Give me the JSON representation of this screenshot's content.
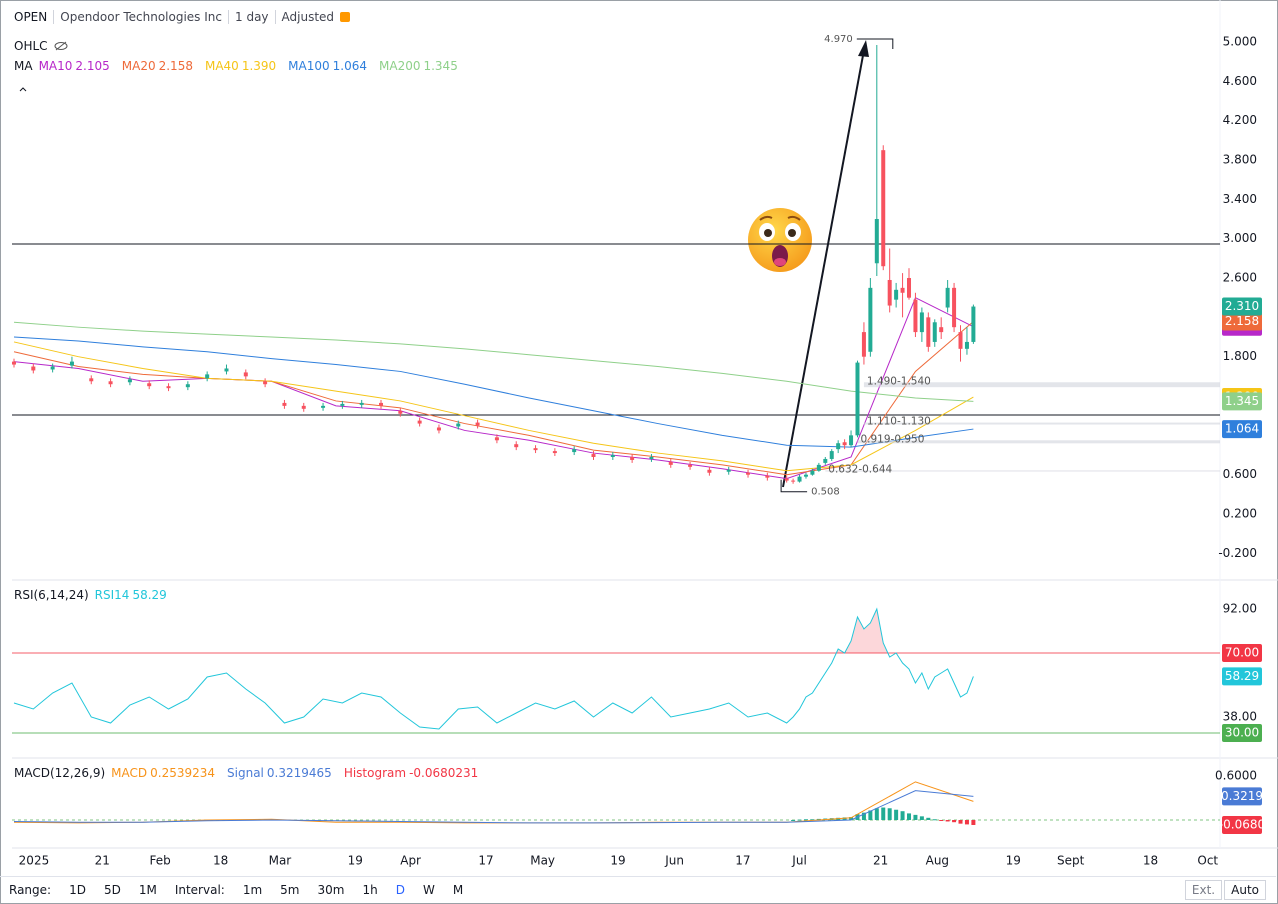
{
  "header": {
    "symbol": "OPEN",
    "name": "Opendoor Technologies Inc",
    "interval": "1 day",
    "adjustment": "Adjusted"
  },
  "chart_data": [
    {
      "type": "candlestick",
      "legend_title": "OHLC",
      "ma_title": "MA",
      "xlim": [
        -0.31,
        187.3
      ],
      "xticks": [
        {
          "value": 3.1,
          "label": "2025"
        },
        {
          "value": 13.7,
          "label": "21"
        },
        {
          "value": 22.7,
          "label": "Feb"
        },
        {
          "value": 32.1,
          "label": "18"
        },
        {
          "value": 41.3,
          "label": "Mar"
        },
        {
          "value": 53,
          "label": "19"
        },
        {
          "value": 61.6,
          "label": "Apr"
        },
        {
          "value": 73.3,
          "label": "17"
        },
        {
          "value": 82.1,
          "label": "May"
        },
        {
          "value": 93.8,
          "label": "19"
        },
        {
          "value": 102.6,
          "label": "Jun"
        },
        {
          "value": 113.2,
          "label": "17"
        },
        {
          "value": 122,
          "label": "Jul"
        },
        {
          "value": 134.6,
          "label": "21"
        },
        {
          "value": 143.4,
          "label": "Aug"
        },
        {
          "value": 155.2,
          "label": "19"
        },
        {
          "value": 164.1,
          "label": "Sept"
        },
        {
          "value": 176.5,
          "label": "18"
        },
        {
          "value": 185.4,
          "label": "Oct"
        }
      ],
      "ylim": [
        -0.3,
        5.4
      ],
      "yticks": [
        {
          "value": 5,
          "label": "5.000"
        },
        {
          "value": 4.6,
          "label": "4.600"
        },
        {
          "value": 4.2,
          "label": "4.200"
        },
        {
          "value": 3.8,
          "label": "3.800"
        },
        {
          "value": 3.4,
          "label": "3.400"
        },
        {
          "value": 3,
          "label": "3.000"
        },
        {
          "value": 2.6,
          "label": "2.600"
        },
        {
          "value": 1.8,
          "label": "1.800"
        },
        {
          "value": 0.6,
          "label": "0.600"
        },
        {
          "value": 0.2,
          "label": "0.200"
        },
        {
          "value": -0.2,
          "label": "-0.200"
        }
      ],
      "x": [
        0,
        3,
        6,
        9,
        12,
        15,
        18,
        21,
        24,
        27,
        30,
        33,
        36,
        39,
        42,
        45,
        48,
        51,
        54,
        57,
        60,
        63,
        66,
        69,
        72,
        75,
        78,
        81,
        84,
        87,
        90,
        93,
        96,
        99,
        102,
        105,
        108,
        111,
        114,
        117,
        120,
        121,
        122,
        123,
        124,
        125,
        126,
        127,
        128,
        129,
        130,
        131,
        132,
        133,
        134,
        135,
        136,
        137,
        138,
        139,
        140,
        141,
        142,
        143,
        144,
        145,
        146,
        147,
        148,
        149
      ],
      "open": [
        1.75,
        1.7,
        1.67,
        1.71,
        1.58,
        1.55,
        1.54,
        1.53,
        1.5,
        1.49,
        1.58,
        1.65,
        1.64,
        1.55,
        1.33,
        1.3,
        1.28,
        1.3,
        1.31,
        1.33,
        1.25,
        1.15,
        1.08,
        1.09,
        1.13,
        0.98,
        0.91,
        0.87,
        0.84,
        0.83,
        0.81,
        0.78,
        0.78,
        0.76,
        0.73,
        0.7,
        0.65,
        0.63,
        0.62,
        0.59,
        0.56,
        0.54,
        0.53,
        0.58,
        0.6,
        0.64,
        0.72,
        0.76,
        0.86,
        0.93,
        0.9,
        1.0,
        2.05,
        1.85,
        2.75,
        3.9,
        2.58,
        2.38,
        2.5,
        2.6,
        2.38,
        2.05,
        2.2,
        1.95,
        2.1,
        2.3,
        2.5,
        2.05,
        1.88,
        1.95
      ],
      "high": [
        1.78,
        1.73,
        1.73,
        1.8,
        1.61,
        1.58,
        1.6,
        1.56,
        1.53,
        1.55,
        1.65,
        1.72,
        1.67,
        1.58,
        1.36,
        1.33,
        1.33,
        1.35,
        1.36,
        1.36,
        1.28,
        1.18,
        1.11,
        1.15,
        1.16,
        1.01,
        0.94,
        0.9,
        0.87,
        0.89,
        0.84,
        0.83,
        0.81,
        0.81,
        0.76,
        0.73,
        0.68,
        0.68,
        0.65,
        0.62,
        0.59,
        0.56,
        0.6,
        0.62,
        0.66,
        0.72,
        0.78,
        0.86,
        0.95,
        0.96,
        1.05,
        1.76,
        2.15,
        2.6,
        4.97,
        3.95,
        2.9,
        2.55,
        2.65,
        2.7,
        2.45,
        2.3,
        2.25,
        2.18,
        2.2,
        2.58,
        2.55,
        2.12,
        2.1,
        2.33
      ],
      "low": [
        1.69,
        1.63,
        1.64,
        1.68,
        1.52,
        1.49,
        1.51,
        1.47,
        1.45,
        1.46,
        1.55,
        1.62,
        1.57,
        1.49,
        1.27,
        1.24,
        1.25,
        1.27,
        1.28,
        1.27,
        1.19,
        1.09,
        1.02,
        1.06,
        1.07,
        0.92,
        0.85,
        0.82,
        0.79,
        0.8,
        0.75,
        0.75,
        0.72,
        0.73,
        0.67,
        0.65,
        0.59,
        0.6,
        0.57,
        0.54,
        0.52,
        0.508,
        0.52,
        0.56,
        0.59,
        0.63,
        0.7,
        0.74,
        0.82,
        0.86,
        0.88,
        0.98,
        1.72,
        1.8,
        2.62,
        2.68,
        2.25,
        2.3,
        2.2,
        2.38,
        2.0,
        1.95,
        1.85,
        1.9,
        1.98,
        2.25,
        2.05,
        1.75,
        1.82,
        1.93
      ],
      "close": [
        1.72,
        1.66,
        1.7,
        1.75,
        1.55,
        1.52,
        1.57,
        1.5,
        1.48,
        1.52,
        1.62,
        1.68,
        1.6,
        1.52,
        1.3,
        1.27,
        1.3,
        1.32,
        1.33,
        1.3,
        1.22,
        1.12,
        1.05,
        1.12,
        1.1,
        0.95,
        0.88,
        0.85,
        0.82,
        0.86,
        0.78,
        0.8,
        0.75,
        0.78,
        0.7,
        0.68,
        0.62,
        0.65,
        0.6,
        0.57,
        0.54,
        0.53,
        0.58,
        0.6,
        0.64,
        0.7,
        0.76,
        0.84,
        0.92,
        0.9,
        1.0,
        1.74,
        1.8,
        2.5,
        3.2,
        2.72,
        2.32,
        2.48,
        2.45,
        2.4,
        2.05,
        2.25,
        1.9,
        2.15,
        2.05,
        2.5,
        2.1,
        1.88,
        1.95,
        2.31
      ],
      "last_label": "2.310",
      "up_color": "#22ab94",
      "down_color": "#f7525f",
      "ma_x": [
        0,
        10,
        20,
        30,
        40,
        50,
        60,
        70,
        80,
        90,
        100,
        110,
        120,
        130,
        140,
        149
      ],
      "ma": [
        {
          "name": "MA10",
          "color": "#b728c9",
          "legend_value": "2.105",
          "values": [
            1.75,
            1.68,
            1.55,
            1.58,
            1.55,
            1.3,
            1.25,
            1.05,
            0.95,
            0.82,
            0.75,
            0.66,
            0.56,
            0.78,
            2.4,
            2.105
          ]
        },
        {
          "name": "MA20",
          "color": "#ee6a3a",
          "legend_value": "2.158",
          "values": [
            1.85,
            1.7,
            1.62,
            1.58,
            1.55,
            1.35,
            1.28,
            1.12,
            1.0,
            0.85,
            0.78,
            0.7,
            0.6,
            0.7,
            1.65,
            2.158
          ]
        },
        {
          "name": "MA40",
          "color": "#f5c518",
          "legend_value": "1.390",
          "values": [
            1.95,
            1.8,
            1.68,
            1.58,
            1.55,
            1.45,
            1.35,
            1.2,
            1.05,
            0.92,
            0.82,
            0.74,
            0.64,
            0.7,
            1.05,
            1.39
          ]
        },
        {
          "name": "MA100",
          "color": "#2f7fdc",
          "legend_value": "1.064",
          "values": [
            2.0,
            1.96,
            1.9,
            1.85,
            1.78,
            1.72,
            1.65,
            1.52,
            1.38,
            1.25,
            1.12,
            1.0,
            0.9,
            0.88,
            0.98,
            1.064
          ]
        },
        {
          "name": "MA200",
          "color": "#8fd08a",
          "legend_value": "1.345",
          "values": [
            2.15,
            2.1,
            2.06,
            2.03,
            2.0,
            1.97,
            1.93,
            1.88,
            1.82,
            1.76,
            1.7,
            1.63,
            1.55,
            1.45,
            1.38,
            1.345
          ]
        }
      ],
      "hlines": [
        2.946,
        1.207
      ],
      "high_label": "4.970",
      "low_label": "0.508",
      "gaps": [
        {
          "range": [
            1.49,
            1.54
          ],
          "label": "1.490-1.540"
        },
        {
          "range": [
            1.11,
            1.13
          ],
          "label": "1.110-1.130"
        },
        {
          "range": [
            0.919,
            0.95
          ],
          "label": "0.919-0.950"
        },
        {
          "range": [
            0.632,
            0.644
          ],
          "label": "0.632-0.644"
        }
      ]
    },
    {
      "type": "rsi",
      "title": "RSI(6,14,24)",
      "series": [
        {
          "name": "RSI14",
          "color": "#22c6da",
          "legend_value": "58.29",
          "values": [
            45,
            42,
            50,
            55,
            38,
            35,
            44,
            48,
            42,
            47,
            58,
            60,
            52,
            45,
            35,
            38,
            47,
            45,
            50,
            48,
            40,
            33,
            32,
            42,
            43,
            35,
            40,
            45,
            42,
            46,
            38,
            45,
            40,
            48,
            38,
            40,
            42,
            45,
            38,
            40,
            35,
            38,
            42,
            48,
            50,
            55,
            60,
            65,
            72,
            70,
            76,
            88,
            82,
            85,
            92,
            75,
            68,
            70,
            65,
            62,
            55,
            60,
            52,
            58,
            60,
            62,
            55,
            48,
            50,
            58.29
          ]
        }
      ],
      "ylim": [
        25,
        100
      ],
      "yticks": [
        {
          "value": 92,
          "label": "92.00"
        },
        {
          "value": 38,
          "label": "38.00"
        }
      ],
      "levels": [
        {
          "value": 70,
          "label": "70.00",
          "color": "#f23645"
        },
        {
          "value": 30,
          "label": "30.00",
          "color": "#4caf50"
        }
      ]
    },
    {
      "type": "macd",
      "title": "MACD(12,26,9)",
      "series": [
        {
          "name": "MACD",
          "color": "#f7931a",
          "legend_value": "0.2539234",
          "values": [
            -0.03,
            -0.04,
            -0.03,
            0,
            0.01,
            -0.03,
            -0.03,
            -0.04,
            -0.04,
            -0.04,
            -0.03,
            -0.03,
            -0.03,
            0.03,
            0.52,
            0.2539234
          ]
        },
        {
          "name": "Signal",
          "color": "#4a7bd5",
          "legend_value": "0.3219465",
          "box_label": "0.3219",
          "values": [
            -0.02,
            -0.03,
            -0.03,
            -0.01,
            0,
            -0.01,
            -0.02,
            -0.03,
            -0.04,
            -0.04,
            -0.035,
            -0.03,
            -0.03,
            0,
            0.4,
            0.3219465
          ]
        }
      ],
      "histogram": {
        "name": "Histogram",
        "color": "#f23645",
        "up_color": "#22ab94",
        "legend_value": "-0.0680231",
        "box_label": "-0.0680",
        "x": [
          121,
          122,
          123,
          124,
          125,
          126,
          127,
          128,
          129,
          130,
          131,
          132,
          133,
          134,
          135,
          136,
          137,
          138,
          139,
          140,
          141,
          142,
          143,
          144,
          145,
          146,
          147,
          148,
          149
        ],
        "values": [
          0,
          0.005,
          0.01,
          0.01,
          0.015,
          0.02,
          0.025,
          0.03,
          0.035,
          0.04,
          0.08,
          0.1,
          0.13,
          0.16,
          0.17,
          0.16,
          0.14,
          0.12,
          0.09,
          0.07,
          0.05,
          0.03,
          0.01,
          -0.01,
          -0.02,
          -0.03,
          -0.05,
          -0.06,
          -0.0680231
        ]
      },
      "ylim": [
        -0.15,
        0.75
      ],
      "yticks": [
        {
          "value": 0.6,
          "label": "0.6000"
        }
      ]
    }
  ],
  "toolbar": {
    "range_label": "Range:",
    "ranges": [
      "1D",
      "5D",
      "1M"
    ],
    "interval_label": "Interval:",
    "intervals": [
      "1m",
      "5m",
      "30m",
      "1h",
      "D",
      "W",
      "M"
    ],
    "right": [
      "Ext.",
      "Auto"
    ]
  }
}
